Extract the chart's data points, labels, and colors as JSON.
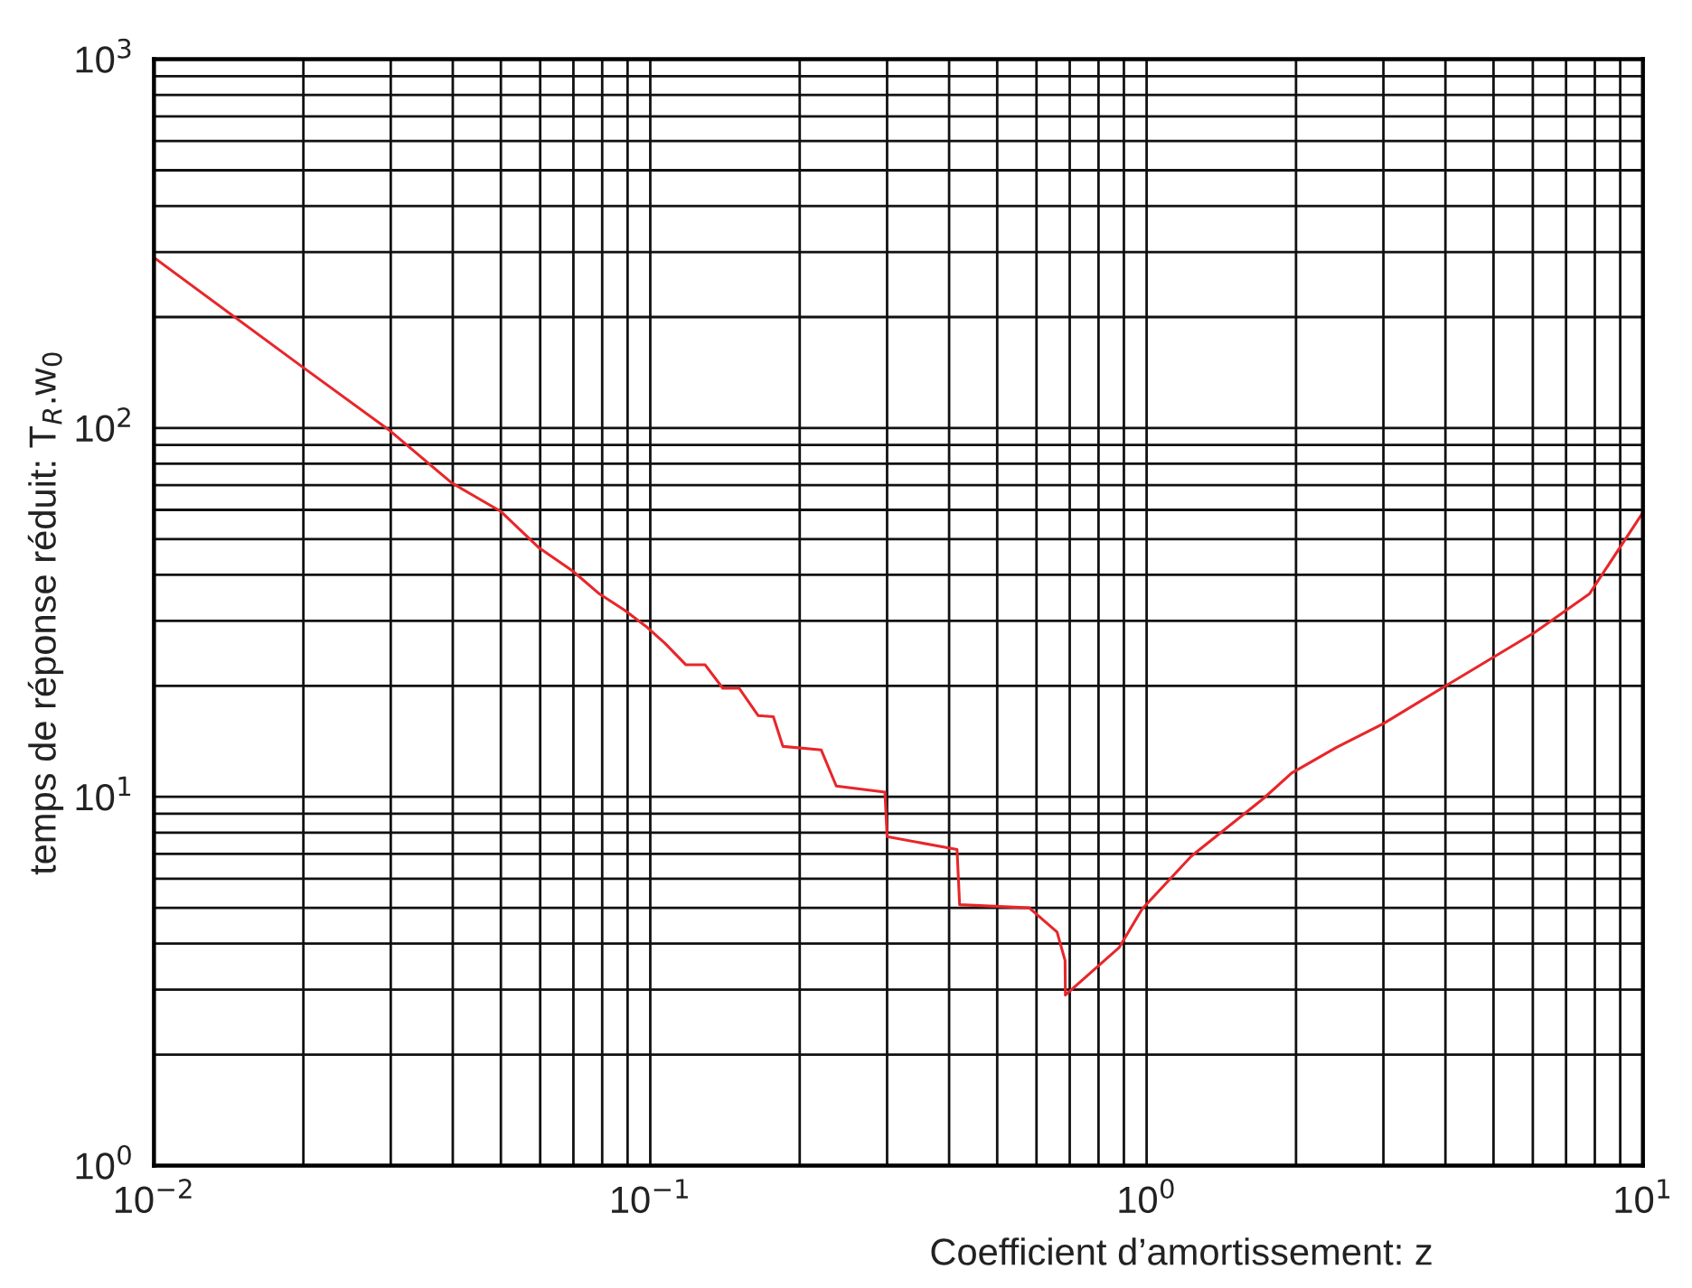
{
  "chart_data": {
    "type": "line",
    "xlabel": "Coefficient d’amortissement: z",
    "ylabel": "temps de réponse réduit: T$_{R}$.w$_{0}$",
    "log": "xy",
    "grid": true,
    "legend": false,
    "marker": "none",
    "line_style": "solid",
    "xlim": [
      0.01,
      10
    ],
    "ylim": [
      1,
      1000
    ],
    "xticks": [
      {
        "value": 0.01,
        "label": "10$^{−2}$"
      },
      {
        "value": 0.1,
        "label": "10$^{−1}$"
      },
      {
        "value": 1,
        "label": "10$^{0}$"
      },
      {
        "value": 10,
        "label": "10$^{1}$"
      }
    ],
    "yticks": [
      {
        "value": 1,
        "label": "10$^{0}$"
      },
      {
        "value": 10,
        "label": "10$^{1}$"
      },
      {
        "value": 100,
        "label": "10$^{2}$"
      },
      {
        "value": 1000,
        "label": "10$^{3}$"
      }
    ],
    "series": [
      {
        "color": "#e8262a",
        "x": [
          0.01,
          0.0197,
          0.0297,
          0.0398,
          0.0499,
          0.0595,
          0.0697,
          0.079,
          0.089,
          0.098,
          0.107,
          0.118,
          0.129,
          0.14,
          0.151,
          0.165,
          0.177,
          0.185,
          0.221,
          0.237,
          0.297,
          0.3,
          0.415,
          0.42,
          0.58,
          0.66,
          0.685,
          0.686,
          0.88,
          0.98,
          1.23,
          1.72,
          1.96,
          2.41,
          3.0,
          3.98,
          6.05,
          7.8,
          10
        ],
        "values": [
          290,
          148,
          99,
          71,
          59.5,
          47.5,
          41,
          35.5,
          32,
          29,
          26.1,
          22.8,
          22.8,
          19.7,
          19.7,
          16.6,
          16.5,
          13.7,
          13.4,
          10.7,
          10.3,
          7.8,
          7.2,
          5.1,
          5.0,
          4.3,
          3.6,
          2.9,
          3.9,
          4.97,
          6.9,
          9.9,
          11.6,
          13.6,
          15.8,
          19.9,
          27.9,
          35.5,
          59
        ]
      }
    ]
  }
}
